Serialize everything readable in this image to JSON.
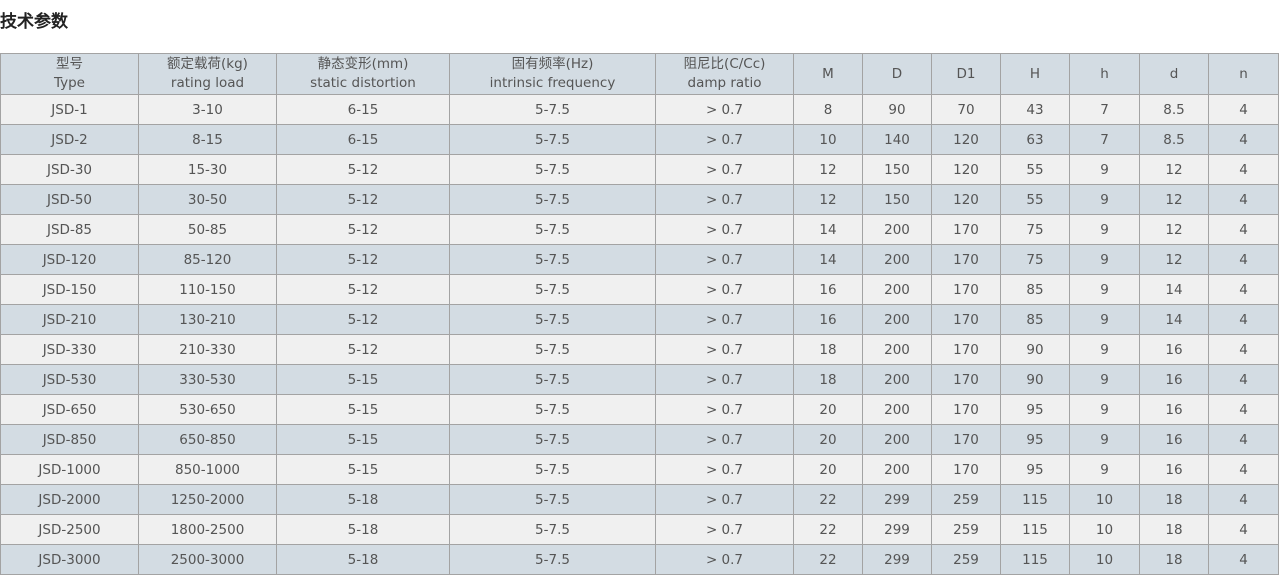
{
  "title": "技术参数",
  "headers": [
    {
      "cn": "型号",
      "en": "Type"
    },
    {
      "cn": "额定载荷(kg)",
      "en": "rating load"
    },
    {
      "cn": "静态变形(mm)",
      "en": "static distortion"
    },
    {
      "cn": "固有频率(Hz)",
      "en": "intrinsic frequency"
    },
    {
      "cn": "阻尼比(C/Cc)",
      "en": "damp ratio"
    },
    {
      "cn": "M",
      "en": ""
    },
    {
      "cn": "D",
      "en": ""
    },
    {
      "cn": "D1",
      "en": ""
    },
    {
      "cn": "H",
      "en": ""
    },
    {
      "cn": "h",
      "en": ""
    },
    {
      "cn": "d",
      "en": ""
    },
    {
      "cn": "n",
      "en": ""
    }
  ],
  "rows": [
    [
      "JSD-1",
      "3-10",
      "6-15",
      "5-7.5",
      "> 0.7",
      "8",
      "90",
      "70",
      "43",
      "7",
      "8.5",
      "4"
    ],
    [
      "JSD-2",
      "8-15",
      "6-15",
      "5-7.5",
      "> 0.7",
      "10",
      "140",
      "120",
      "63",
      "7",
      "8.5",
      "4"
    ],
    [
      "JSD-30",
      "15-30",
      "5-12",
      "5-7.5",
      "> 0.7",
      "12",
      "150",
      "120",
      "55",
      "9",
      "12",
      "4"
    ],
    [
      "JSD-50",
      "30-50",
      "5-12",
      "5-7.5",
      "> 0.7",
      "12",
      "150",
      "120",
      "55",
      "9",
      "12",
      "4"
    ],
    [
      "JSD-85",
      "50-85",
      "5-12",
      "5-7.5",
      "> 0.7",
      "14",
      "200",
      "170",
      "75",
      "9",
      "12",
      "4"
    ],
    [
      "JSD-120",
      "85-120",
      "5-12",
      "5-7.5",
      "> 0.7",
      "14",
      "200",
      "170",
      "75",
      "9",
      "12",
      "4"
    ],
    [
      "JSD-150",
      "110-150",
      "5-12",
      "5-7.5",
      "> 0.7",
      "16",
      "200",
      "170",
      "85",
      "9",
      "14",
      "4"
    ],
    [
      "JSD-210",
      "130-210",
      "5-12",
      "5-7.5",
      "> 0.7",
      "16",
      "200",
      "170",
      "85",
      "9",
      "14",
      "4"
    ],
    [
      "JSD-330",
      "210-330",
      "5-12",
      "5-7.5",
      "> 0.7",
      "18",
      "200",
      "170",
      "90",
      "9",
      "16",
      "4"
    ],
    [
      "JSD-530",
      "330-530",
      "5-15",
      "5-7.5",
      "> 0.7",
      "18",
      "200",
      "170",
      "90",
      "9",
      "16",
      "4"
    ],
    [
      "JSD-650",
      "530-650",
      "5-15",
      "5-7.5",
      "> 0.7",
      "20",
      "200",
      "170",
      "95",
      "9",
      "16",
      "4"
    ],
    [
      "JSD-850",
      "650-850",
      "5-15",
      "5-7.5",
      "> 0.7",
      "20",
      "200",
      "170",
      "95",
      "9",
      "16",
      "4"
    ],
    [
      "JSD-1000",
      "850-1000",
      "5-15",
      "5-7.5",
      "> 0.7",
      "20",
      "200",
      "170",
      "95",
      "9",
      "16",
      "4"
    ],
    [
      "JSD-2000",
      "1250-2000",
      "5-18",
      "5-7.5",
      "> 0.7",
      "22",
      "299",
      "259",
      "115",
      "10",
      "18",
      "4"
    ],
    [
      "JSD-2500",
      "1800-2500",
      "5-18",
      "5-7.5",
      "> 0.7",
      "22",
      "299",
      "259",
      "115",
      "10",
      "18",
      "4"
    ],
    [
      "JSD-3000",
      "2500-3000",
      "5-18",
      "5-7.5",
      "> 0.7",
      "22",
      "299",
      "259",
      "115",
      "10",
      "18",
      "4"
    ]
  ]
}
